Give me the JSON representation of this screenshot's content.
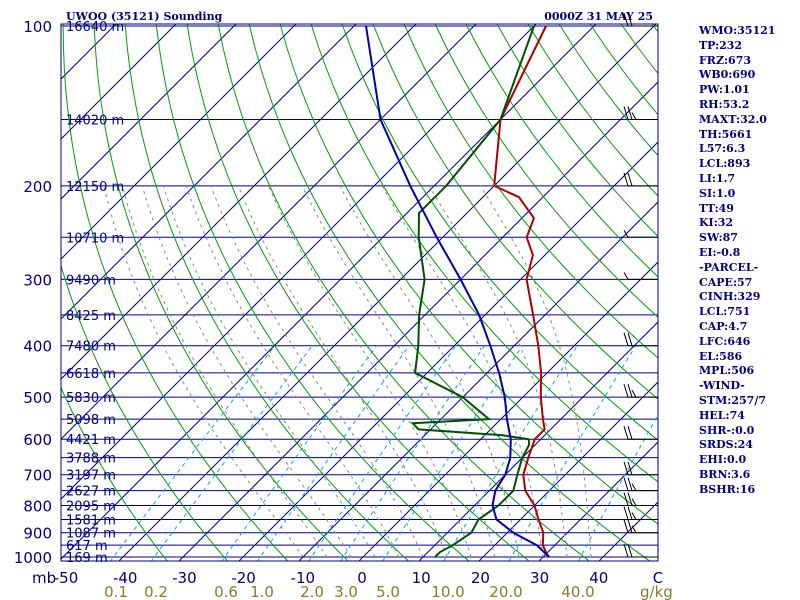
{
  "header": {
    "station": "UWOO (35121) Sounding",
    "time": "0000Z 31 MAY 25"
  },
  "indices": [
    "WMO:35121",
    "TP:232",
    "FRZ:673",
    "WB0:690",
    "PW:1.01",
    "RH:53.2",
    "MAXT:32.0",
    "TH:5661",
    "L57:6.3",
    "LCL:893",
    "LI:1.7",
    "SI:1.0",
    "TT:49",
    "KI:32",
    "SW:87",
    "EI:-0.8",
    "-PARCEL-",
    "CAPE:57",
    "CINH:329",
    "LCL:751",
    "CAP:4.7",
    "LFC:646",
    "EL:586",
    "MPL:506",
    "-WIND-",
    "STM:257/7",
    "HEL:74",
    "SHR-:0.0",
    "SRDS:24",
    "EHI:0.0",
    "BRN:3.6",
    "BSHR:16"
  ],
  "colors": {
    "isobar": "#000080",
    "skewed_isotherm": "#000080",
    "dry_adiabat": "#00a000",
    "mixing_ratio": "#00a8e0",
    "moist_adiabat": "#8a8a7a",
    "temperature": "#b00000",
    "dewpoint": "#005000",
    "parcel": "#0000b0",
    "label": "#000080",
    "mixing_label": "#8a7a2a",
    "wind": "#000000"
  },
  "chart_data": {
    "type": "line",
    "pressure_axis_unit": "mb",
    "pressure_ticks": [
      "100",
      "200",
      "300",
      "400",
      "500",
      "600",
      "700",
      "800",
      "900",
      "1000"
    ],
    "temperature_ticks": [
      "-50",
      "-40",
      "-30",
      "-20",
      "-10",
      "0",
      "10",
      "20",
      "30",
      "40",
      "C"
    ],
    "mixing_ratio_unit": "g/kg",
    "mixing_ratio_ticks": [
      "0.1",
      "0.2",
      "0.6",
      "1.0",
      "2.0",
      "3.0",
      "5.0",
      "10.0",
      "20.0",
      "40.0"
    ],
    "height_labels": [
      {
        "p": 100,
        "label": "16640 m"
      },
      {
        "p": 150,
        "label": "14020 m"
      },
      {
        "p": 200,
        "label": "12150 m"
      },
      {
        "p": 250,
        "label": "10710 m"
      },
      {
        "p": 300,
        "label": "9490 m"
      },
      {
        "p": 350,
        "label": "8425 m"
      },
      {
        "p": 400,
        "label": "7480 m"
      },
      {
        "p": 450,
        "label": "6618 m"
      },
      {
        "p": 500,
        "label": "5830 m"
      },
      {
        "p": 550,
        "label": "5098 m"
      },
      {
        "p": 600,
        "label": "4421 m"
      },
      {
        "p": 650,
        "label": "3788 m"
      },
      {
        "p": 700,
        "label": "3197 m"
      },
      {
        "p": 750,
        "label": "2627 m"
      },
      {
        "p": 800,
        "label": "2095 m"
      },
      {
        "p": 850,
        "label": "1581 m"
      },
      {
        "p": 900,
        "label": "1087 m"
      },
      {
        "p": 950,
        "label": "617 m"
      },
      {
        "p": 1000,
        "label": "169 m"
      }
    ],
    "series": [
      {
        "key": "temperature",
        "points": [
          [
            1000,
            31
          ],
          [
            985,
            30
          ],
          [
            950,
            28
          ],
          [
            900,
            26
          ],
          [
            850,
            23
          ],
          [
            800,
            20
          ],
          [
            750,
            16
          ],
          [
            700,
            13
          ],
          [
            650,
            11
          ],
          [
            600,
            9
          ],
          [
            575,
            9
          ],
          [
            550,
            7
          ],
          [
            500,
            3
          ],
          [
            450,
            -1
          ],
          [
            400,
            -6
          ],
          [
            350,
            -12
          ],
          [
            300,
            -19
          ],
          [
            270,
            -22
          ],
          [
            250,
            -26
          ],
          [
            230,
            -28
          ],
          [
            210,
            -34
          ],
          [
            200,
            -40
          ],
          [
            150,
            -50
          ],
          [
            100,
            -58
          ]
        ]
      },
      {
        "key": "dewpoint",
        "points": [
          [
            1000,
            12
          ],
          [
            980,
            12
          ],
          [
            950,
            13
          ],
          [
            900,
            14
          ],
          [
            850,
            13
          ],
          [
            800,
            14
          ],
          [
            750,
            14
          ],
          [
            700,
            12
          ],
          [
            650,
            10
          ],
          [
            615,
            9
          ],
          [
            600,
            8
          ],
          [
            590,
            3
          ],
          [
            575,
            -12
          ],
          [
            560,
            -14
          ],
          [
            550,
            -2
          ],
          [
            500,
            -10
          ],
          [
            450,
            -22
          ],
          [
            400,
            -26
          ],
          [
            350,
            -31
          ],
          [
            300,
            -36
          ],
          [
            250,
            -44
          ],
          [
            225,
            -48
          ],
          [
            200,
            -48
          ],
          [
            150,
            -50
          ],
          [
            100,
            -60
          ]
        ]
      },
      {
        "key": "parcel",
        "points": [
          [
            1000,
            31
          ],
          [
            950,
            27
          ],
          [
            900,
            21
          ],
          [
            850,
            16
          ],
          [
            800,
            13
          ],
          [
            750,
            11
          ],
          [
            700,
            10
          ],
          [
            650,
            8
          ],
          [
            600,
            5
          ],
          [
            550,
            1
          ],
          [
            500,
            -3
          ],
          [
            450,
            -8
          ],
          [
            400,
            -14
          ],
          [
            350,
            -21
          ],
          [
            300,
            -30
          ],
          [
            250,
            -41
          ],
          [
            200,
            -54
          ],
          [
            150,
            -70
          ],
          [
            100,
            -88
          ]
        ]
      }
    ],
    "wind_barbs": [
      {
        "p": 1000,
        "speed": 10
      },
      {
        "p": 900,
        "speed": 15
      },
      {
        "p": 850,
        "speed": 15
      },
      {
        "p": 800,
        "speed": 15
      },
      {
        "p": 750,
        "speed": 15
      },
      {
        "p": 700,
        "speed": 10
      },
      {
        "p": 600,
        "speed": 10
      },
      {
        "p": 500,
        "speed": 15
      },
      {
        "p": 400,
        "speed": 10
      },
      {
        "p": 300,
        "speed": 5
      },
      {
        "p": 250,
        "speed": 5
      },
      {
        "p": 200,
        "speed": 10
      },
      {
        "p": 150,
        "speed": 15
      },
      {
        "p": 100,
        "speed": 10
      }
    ]
  }
}
